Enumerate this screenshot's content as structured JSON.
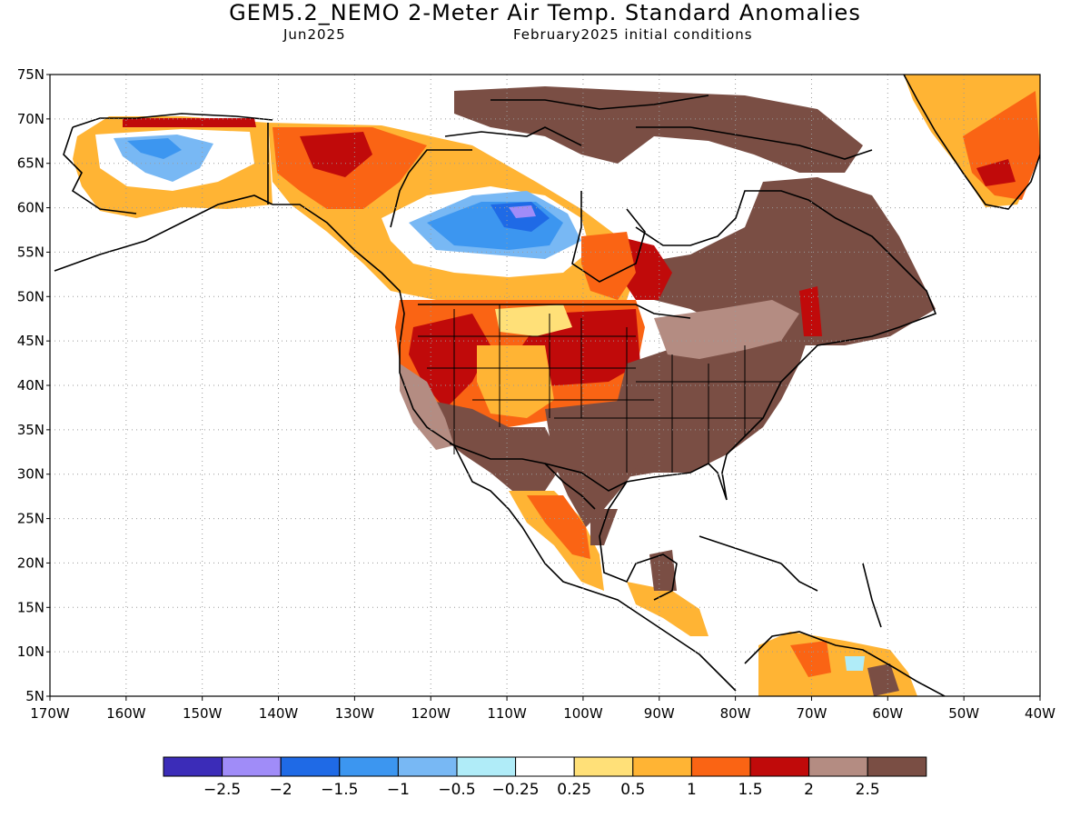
{
  "title": "GEM5.2_NEMO 2-Meter Air Temp. Standard Anomalies",
  "subtitle_left": "Jun2025",
  "subtitle_right": "February2025 initial conditions",
  "map": {
    "lat_labels": [
      "75N",
      "70N",
      "65N",
      "60N",
      "55N",
      "50N",
      "45N",
      "40N",
      "35N",
      "30N",
      "25N",
      "20N",
      "15N",
      "10N",
      "5N"
    ],
    "lon_labels": [
      "170W",
      "160W",
      "150W",
      "140W",
      "130W",
      "120W",
      "110W",
      "100W",
      "90W",
      "80W",
      "70W",
      "60W",
      "50W",
      "40W"
    ],
    "lat_range": [
      5,
      75
    ],
    "lon_range": [
      -170,
      -40
    ],
    "grid": "dotted"
  },
  "colorbar": {
    "colors": [
      "#3b2cb8",
      "#a08cf8",
      "#1f6ae6",
      "#3c96f0",
      "#78b8f4",
      "#b0ecf8",
      "#ffffff",
      "#ffe078",
      "#ffb434",
      "#fa6414",
      "#c00a0a",
      "#b48c82",
      "#7a4e44"
    ],
    "labels": [
      "-2.5",
      "-2",
      "-1.5",
      "-1",
      "-0.5",
      "-0.25",
      "0.25",
      "0.5",
      "1",
      "1.5",
      "2",
      "2.5"
    ]
  }
}
